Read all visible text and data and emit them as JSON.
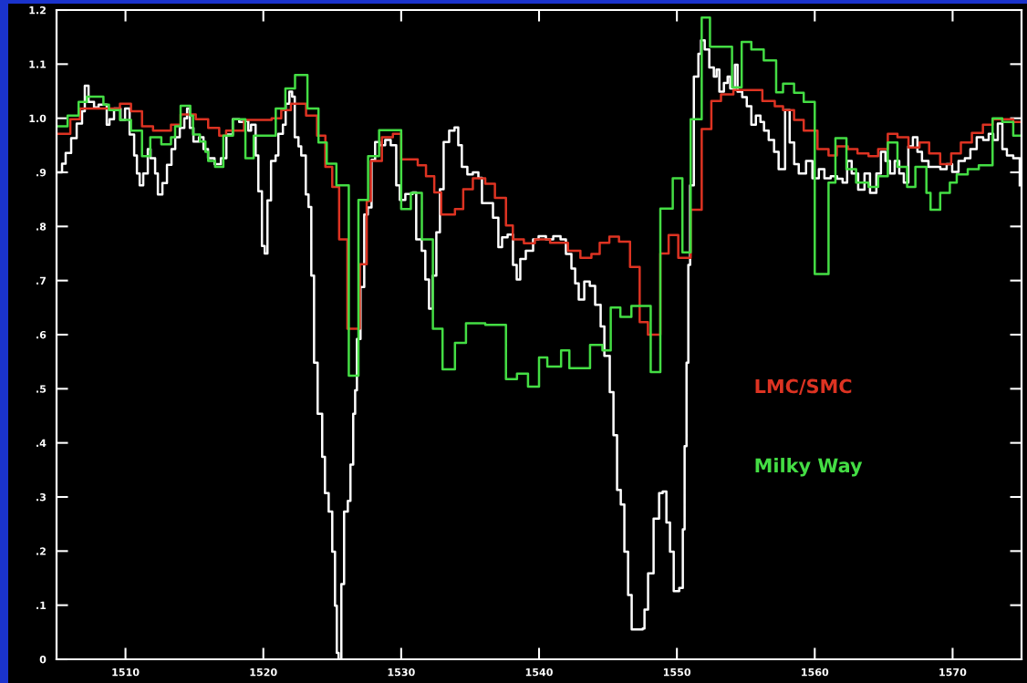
{
  "chart_data": {
    "type": "step",
    "xlim": [
      1505,
      1575
    ],
    "ylim": [
      0,
      1.2
    ],
    "xticks": [
      1510,
      1520,
      1530,
      1540,
      1550,
      1560,
      1570
    ],
    "yticks": [
      0,
      {
        "value": 0.1,
        "label": ".1"
      },
      {
        "value": 0.2,
        "label": ".2"
      },
      {
        "value": 0.3,
        "label": ".3"
      },
      {
        "value": 0.4,
        "label": ".4"
      },
      {
        "value": 0.5,
        "label": ".5"
      },
      {
        "value": 0.6,
        "label": ".6"
      },
      {
        "value": 0.7,
        "label": ".7"
      },
      {
        "value": 0.8,
        "label": ".8"
      },
      {
        "value": 0.9,
        "label": ".9"
      },
      {
        "value": 1,
        "label": "1.0"
      },
      1.1,
      1.2
    ],
    "grid": false,
    "legend": "right",
    "series": [
      {
        "color": "#ffffff",
        "x": [
          1505.07,
          1505.4,
          1505.66,
          1506.06,
          1506.46,
          1506.85,
          1507.05,
          1507.32,
          1507.72,
          1508.05,
          1508.64,
          1508.84,
          1509.17,
          1509.64,
          1509.97,
          1510.3,
          1510.63,
          1510.83,
          1511.03,
          1511.29,
          1511.62,
          1511.82,
          1512.15,
          1512.35,
          1512.68,
          1513.01,
          1513.34,
          1513.61,
          1513.94,
          1514.27,
          1514.47,
          1514.67,
          1514.93,
          1515.33,
          1515.66,
          1515.99,
          1516.46,
          1516.92,
          1517.32,
          1517.78,
          1518.25,
          1518.58,
          1518.91,
          1519.11,
          1519.44,
          1519.64,
          1519.9,
          1520.1,
          1520.3,
          1520.56,
          1520.89,
          1521.09,
          1521.42,
          1521.62,
          1521.89,
          1522.09,
          1522.28,
          1522.55,
          1522.75,
          1523.08,
          1523.28,
          1523.48,
          1523.68,
          1523.94,
          1524.27,
          1524.47,
          1524.74,
          1525.0,
          1525.2,
          1525.33,
          1525.46,
          1525.66,
          1525.86,
          1526.13,
          1526.32,
          1526.52,
          1526.66,
          1526.79,
          1527.05,
          1527.32,
          1527.58,
          1527.85,
          1528.11,
          1528.44,
          1528.84,
          1529.24,
          1529.64,
          1529.9,
          1530.3,
          1530.83,
          1531.09,
          1531.49,
          1531.75,
          1532.02,
          1532.28,
          1532.55,
          1532.81,
          1533.08,
          1533.48,
          1533.87,
          1534.14,
          1534.4,
          1534.8,
          1535.2,
          1535.6,
          1535.86,
          1536.26,
          1536.66,
          1537.05,
          1537.32,
          1537.72,
          1538.11,
          1538.38,
          1538.64,
          1539.04,
          1539.57,
          1539.97,
          1540.5,
          1541.03,
          1541.56,
          1541.95,
          1542.35,
          1542.62,
          1542.88,
          1543.28,
          1543.68,
          1544.07,
          1544.47,
          1544.74,
          1545.13,
          1545.4,
          1545.66,
          1545.93,
          1546.19,
          1546.46,
          1546.72,
          1547.52,
          1547.65,
          1547.91,
          1548.31,
          1548.71,
          1548.97,
          1549.24,
          1549.5,
          1549.77,
          1550.17,
          1550.43,
          1550.56,
          1550.7,
          1550.83,
          1550.96,
          1551.23,
          1551.56,
          1551.75,
          1552.02,
          1552.35,
          1552.68,
          1552.88,
          1553.08,
          1553.41,
          1553.68,
          1553.87,
          1554.21,
          1554.4,
          1554.74,
          1555.07,
          1555.4,
          1555.73,
          1556.06,
          1556.32,
          1556.66,
          1557.05,
          1557.38,
          1557.85,
          1558.18,
          1558.51,
          1558.84,
          1559.37,
          1559.83,
          1560.3,
          1560.7,
          1561.16,
          1561.62,
          1562.02,
          1562.35,
          1562.68,
          1563.15,
          1563.61,
          1564.01,
          1564.47,
          1564.8,
          1565.13,
          1565.46,
          1565.8,
          1566.13,
          1566.46,
          1566.79,
          1567.12,
          1567.45,
          1567.78,
          1568.25,
          1568.64,
          1569.11,
          1569.57,
          1569.97,
          1570.43,
          1570.89,
          1571.29,
          1571.75,
          1572.22,
          1572.62,
          1572.95,
          1573.28,
          1573.61,
          1573.94,
          1574.4,
          1574.87
        ],
        "values": [
          0.9,
          0.916,
          0.936,
          0.963,
          0.99,
          1.013,
          1.06,
          1.03,
          1.02,
          1.025,
          0.988,
          0.998,
          1.018,
          0.997,
          1.018,
          0.97,
          0.931,
          0.898,
          0.876,
          0.898,
          0.943,
          0.926,
          0.898,
          0.859,
          0.88,
          0.914,
          0.943,
          0.965,
          0.982,
          1.0,
          1.018,
          0.982,
          0.957,
          0.965,
          0.943,
          0.926,
          0.915,
          0.926,
          0.97,
          0.998,
          0.993,
          0.995,
          0.977,
          0.988,
          0.931,
          0.865,
          0.764,
          0.75,
          0.848,
          0.921,
          0.931,
          0.971,
          0.988,
          1.027,
          1.049,
          1.04,
          0.965,
          0.948,
          0.931,
          0.859,
          0.836,
          0.709,
          0.548,
          0.454,
          0.374,
          0.307,
          0.273,
          0.199,
          0.099,
          0.012,
          0.0,
          0.139,
          0.273,
          0.293,
          0.36,
          0.454,
          0.497,
          0.592,
          0.688,
          0.822,
          0.835,
          0.923,
          0.956,
          0.95,
          0.96,
          0.95,
          0.876,
          0.849,
          0.86,
          0.863,
          0.776,
          0.755,
          0.702,
          0.648,
          0.709,
          0.789,
          0.869,
          0.956,
          0.977,
          0.983,
          0.95,
          0.91,
          0.896,
          0.9,
          0.89,
          0.843,
          0.843,
          0.816,
          0.762,
          0.78,
          0.785,
          0.729,
          0.702,
          0.74,
          0.755,
          0.776,
          0.782,
          0.776,
          0.782,
          0.776,
          0.749,
          0.722,
          0.695,
          0.665,
          0.698,
          0.69,
          0.655,
          0.615,
          0.561,
          0.494,
          0.414,
          0.313,
          0.286,
          0.199,
          0.119,
          0.055,
          0.057,
          0.092,
          0.159,
          0.26,
          0.307,
          0.31,
          0.253,
          0.199,
          0.126,
          0.132,
          0.24,
          0.394,
          0.548,
          0.729,
          0.876,
          1.077,
          1.119,
          1.144,
          1.127,
          1.094,
          1.077,
          1.09,
          1.049,
          1.065,
          1.077,
          1.055,
          1.099,
          1.049,
          1.039,
          1.022,
          0.988,
          1.005,
          0.993,
          0.977,
          0.96,
          0.938,
          0.906,
          1.015,
          0.955,
          0.915,
          0.898,
          0.921,
          0.889,
          0.906,
          0.889,
          0.893,
          0.888,
          0.881,
          0.921,
          0.898,
          0.868,
          0.898,
          0.862,
          0.898,
          0.938,
          0.921,
          0.898,
          0.921,
          0.898,
          0.881,
          0.948,
          0.965,
          0.938,
          0.921,
          0.91,
          0.91,
          0.906,
          0.915,
          0.901,
          0.921,
          0.926,
          0.943,
          0.965,
          0.96,
          0.971,
          0.96,
          0.99,
          0.943,
          0.931,
          0.926,
          0.876
        ]
      },
      {
        "name": "LMC/SMC",
        "color": "#dd3322",
        "x": [
          1505.0,
          1506.0,
          1506.7,
          1509.6,
          1510.4,
          1511.2,
          1512.0,
          1513.3,
          1514.0,
          1515.1,
          1516.0,
          1516.8,
          1517.3,
          1518.6,
          1520.6,
          1521.3,
          1522.0,
          1523.1,
          1523.9,
          1524.5,
          1525.0,
          1525.5,
          1526.1,
          1527.0,
          1527.5,
          1527.8,
          1528.6,
          1529.4,
          1530.0,
          1531.2,
          1531.8,
          1532.4,
          1532.9,
          1533.9,
          1534.5,
          1535.2,
          1536.1,
          1536.8,
          1537.6,
          1538.1,
          1538.9,
          1539.7,
          1540.8,
          1542.1,
          1543.0,
          1543.8,
          1544.4,
          1545.1,
          1545.8,
          1546.6,
          1547.3,
          1547.9,
          1548.8,
          1549.4,
          1550.1,
          1551.0,
          1551.8,
          1552.5,
          1553.2,
          1554.1,
          1556.2,
          1557.1,
          1557.7,
          1558.5,
          1559.2,
          1560.2,
          1561.0,
          1561.6,
          1562.4,
          1563.1,
          1563.9,
          1564.6,
          1565.3,
          1566.0,
          1566.8,
          1567.6,
          1568.3,
          1569.1,
          1569.9,
          1570.6,
          1571.4,
          1572.2,
          1572.9,
          1574.4,
          1575.0
        ],
        "values": [
          0.971,
          0.998,
          1.018,
          1.027,
          1.013,
          0.985,
          0.977,
          0.988,
          1.007,
          0.998,
          0.982,
          0.968,
          0.977,
          0.997,
          1.0,
          1.015,
          1.027,
          1.005,
          0.968,
          0.91,
          0.873,
          0.776,
          0.611,
          0.73,
          0.847,
          0.921,
          0.965,
          0.971,
          0.924,
          0.913,
          0.893,
          0.863,
          0.822,
          0.832,
          0.869,
          0.889,
          0.879,
          0.853,
          0.802,
          0.776,
          0.769,
          0.776,
          0.77,
          0.755,
          0.742,
          0.749,
          0.77,
          0.781,
          0.772,
          0.725,
          0.623,
          0.6,
          0.75,
          0.784,
          0.742,
          0.831,
          0.98,
          1.032,
          1.044,
          1.052,
          1.032,
          1.022,
          1.015,
          0.997,
          0.977,
          0.943,
          0.931,
          0.948,
          0.943,
          0.935,
          0.93,
          0.943,
          0.971,
          0.965,
          0.946,
          0.955,
          0.935,
          0.915,
          0.935,
          0.955,
          0.973,
          0.988,
          0.998,
          0.993,
          0.993
        ]
      },
      {
        "name": "Milky Way",
        "color": "#44dd44",
        "x": [
          1505.0,
          1505.8,
          1506.6,
          1507.2,
          1508.4,
          1508.8,
          1509.6,
          1510.4,
          1511.2,
          1511.8,
          1512.6,
          1513.3,
          1513.6,
          1514.0,
          1514.7,
          1514.9,
          1515.4,
          1515.8,
          1516.0,
          1516.5,
          1517.1,
          1517.8,
          1518.7,
          1519.3,
          1520.9,
          1521.6,
          1522.3,
          1523.2,
          1524.0,
          1524.6,
          1525.3,
          1526.2,
          1526.9,
          1527.6,
          1528.4,
          1530.0,
          1530.7,
          1531.5,
          1532.3,
          1533.0,
          1533.9,
          1534.7,
          1536.1,
          1537.6,
          1538.4,
          1539.2,
          1540.0,
          1540.6,
          1541.6,
          1542.2,
          1543.7,
          1544.6,
          1545.2,
          1545.9,
          1546.7,
          1548.1,
          1548.8,
          1549.7,
          1550.4,
          1551.0,
          1551.8,
          1552.4,
          1554.0,
          1554.7,
          1555.4,
          1556.3,
          1557.2,
          1557.7,
          1558.5,
          1559.2,
          1560.0,
          1561.0,
          1561.5,
          1562.3,
          1563.0,
          1563.9,
          1564.6,
          1565.3,
          1566.0,
          1566.7,
          1567.3,
          1568.1,
          1568.4,
          1569.1,
          1569.8,
          1570.3,
          1571.1,
          1571.9,
          1572.9,
          1573.6,
          1574.4,
          1575.0
        ],
        "values": [
          0.985,
          1.005,
          1.03,
          1.04,
          1.025,
          1.015,
          0.997,
          0.977,
          0.93,
          0.965,
          0.952,
          0.965,
          0.985,
          1.023,
          1.005,
          0.97,
          0.957,
          0.938,
          0.921,
          0.91,
          0.968,
          0.998,
          0.926,
          0.968,
          1.018,
          1.055,
          1.08,
          1.018,
          0.955,
          0.916,
          0.876,
          0.524,
          0.849,
          0.93,
          0.978,
          0.832,
          0.862,
          0.776,
          0.611,
          0.536,
          0.585,
          0.621,
          0.618,
          0.518,
          0.528,
          0.504,
          0.558,
          0.541,
          0.571,
          0.538,
          0.581,
          0.571,
          0.65,
          0.633,
          0.653,
          0.531,
          0.833,
          0.889,
          0.752,
          0.998,
          1.186,
          1.132,
          1.057,
          1.141,
          1.127,
          1.107,
          1.048,
          1.064,
          1.047,
          1.03,
          0.712,
          0.881,
          0.963,
          0.906,
          0.881,
          0.873,
          0.893,
          0.955,
          0.91,
          0.873,
          0.91,
          0.862,
          0.831,
          0.862,
          0.881,
          0.896,
          0.906,
          0.913,
          1.0,
          0.993,
          0.968,
          0.968
        ]
      }
    ]
  }
}
